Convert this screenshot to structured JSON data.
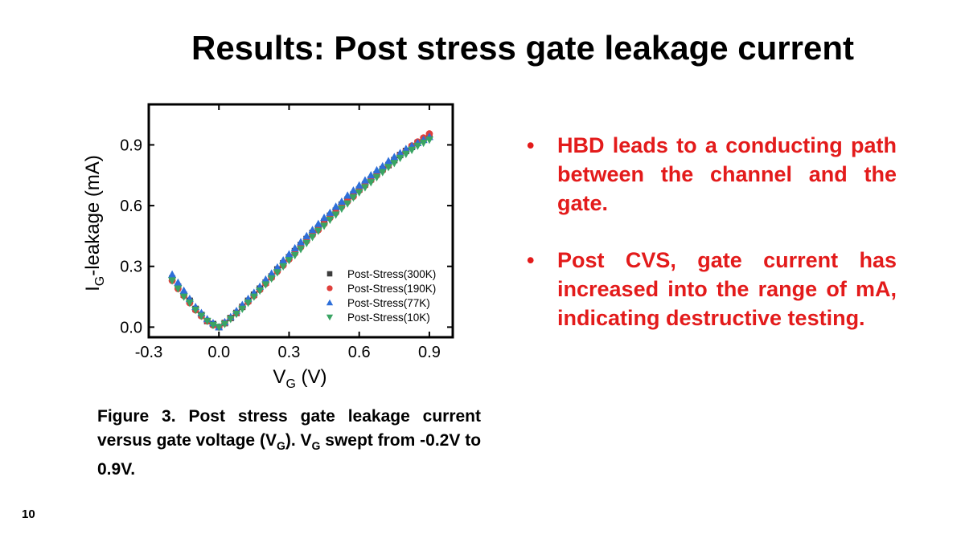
{
  "slide": {
    "title": "Results: Post stress gate leakage current",
    "page_number": "10"
  },
  "caption": {
    "part1": "Figure 3. Post stress gate leakage current versus gate voltage (V",
    "sub1": "G",
    "part2": "). V",
    "sub2": "G",
    "part3": " swept from -0.2V to 0.9V."
  },
  "bullets": [
    {
      "marker": "•",
      "text": "HBD leads to a conducting path between the channel and the gate."
    },
    {
      "marker": "•",
      "text": "Post CVS, gate current has increased into the range of mA, indicating destructive testing."
    }
  ],
  "chart_data": {
    "type": "scatter",
    "title": "",
    "xlabel": {
      "main": "V",
      "sub": "G",
      "suffix": " (V)"
    },
    "ylabel": {
      "main": "I",
      "sub": "G",
      "suffix": "-leakage (mA)"
    },
    "xlim": [
      -0.3,
      1.0
    ],
    "ylim": [
      -0.05,
      1.1
    ],
    "xticks": [
      "-0.3",
      "0.0",
      "0.3",
      "0.6",
      "0.9"
    ],
    "yticks": [
      "0.0",
      "0.3",
      "0.6",
      "0.9"
    ],
    "grid": false,
    "legend_position": "bottom-right",
    "x": [
      -0.2,
      -0.175,
      -0.15,
      -0.125,
      -0.1,
      -0.075,
      -0.05,
      -0.025,
      0.0,
      0.025,
      0.05,
      0.075,
      0.1,
      0.125,
      0.15,
      0.175,
      0.2,
      0.225,
      0.25,
      0.275,
      0.3,
      0.325,
      0.35,
      0.375,
      0.4,
      0.425,
      0.45,
      0.475,
      0.5,
      0.525,
      0.55,
      0.575,
      0.6,
      0.625,
      0.65,
      0.675,
      0.7,
      0.725,
      0.75,
      0.775,
      0.8,
      0.825,
      0.85,
      0.875,
      0.9
    ],
    "series": [
      {
        "name": "Post-Stress(300K)",
        "marker": "square",
        "color": "#3d3d3d",
        "values": [
          0.24,
          0.2,
          0.16,
          0.13,
          0.09,
          0.06,
          0.03,
          0.015,
          0.0,
          0.02,
          0.045,
          0.07,
          0.1,
          0.13,
          0.16,
          0.19,
          0.22,
          0.25,
          0.285,
          0.315,
          0.345,
          0.375,
          0.405,
          0.435,
          0.465,
          0.49,
          0.52,
          0.55,
          0.575,
          0.605,
          0.63,
          0.655,
          0.68,
          0.705,
          0.73,
          0.755,
          0.78,
          0.8,
          0.825,
          0.85,
          0.87,
          0.89,
          0.91,
          0.925,
          0.94
        ]
      },
      {
        "name": "Post-Stress(190K)",
        "marker": "circle",
        "color": "#e0403c",
        "values": [
          0.23,
          0.19,
          0.155,
          0.12,
          0.085,
          0.055,
          0.03,
          0.01,
          0.0,
          0.02,
          0.045,
          0.07,
          0.1,
          0.125,
          0.155,
          0.185,
          0.215,
          0.245,
          0.275,
          0.305,
          0.335,
          0.365,
          0.395,
          0.425,
          0.455,
          0.48,
          0.51,
          0.54,
          0.565,
          0.595,
          0.62,
          0.645,
          0.675,
          0.7,
          0.725,
          0.75,
          0.775,
          0.8,
          0.825,
          0.85,
          0.87,
          0.895,
          0.915,
          0.935,
          0.955
        ]
      },
      {
        "name": "Post-Stress(77K)",
        "marker": "triangle-up",
        "color": "#2e6fd9",
        "values": [
          0.26,
          0.22,
          0.18,
          0.14,
          0.1,
          0.07,
          0.04,
          0.02,
          0.0,
          0.025,
          0.05,
          0.08,
          0.11,
          0.14,
          0.17,
          0.2,
          0.235,
          0.265,
          0.295,
          0.33,
          0.36,
          0.39,
          0.42,
          0.45,
          0.48,
          0.51,
          0.54,
          0.565,
          0.595,
          0.62,
          0.65,
          0.675,
          0.7,
          0.725,
          0.75,
          0.775,
          0.795,
          0.82,
          0.84,
          0.86,
          0.88,
          0.895,
          0.91,
          0.925,
          0.94
        ]
      },
      {
        "name": "Post-Stress(10K)",
        "marker": "triangle-down",
        "color": "#3aa463",
        "values": [
          0.23,
          0.19,
          0.15,
          0.12,
          0.085,
          0.055,
          0.03,
          0.01,
          0.0,
          0.015,
          0.04,
          0.065,
          0.09,
          0.12,
          0.15,
          0.18,
          0.21,
          0.24,
          0.27,
          0.3,
          0.33,
          0.355,
          0.385,
          0.415,
          0.445,
          0.475,
          0.5,
          0.53,
          0.555,
          0.585,
          0.61,
          0.64,
          0.665,
          0.69,
          0.715,
          0.74,
          0.765,
          0.79,
          0.81,
          0.835,
          0.855,
          0.875,
          0.895,
          0.91,
          0.925
        ]
      }
    ]
  }
}
